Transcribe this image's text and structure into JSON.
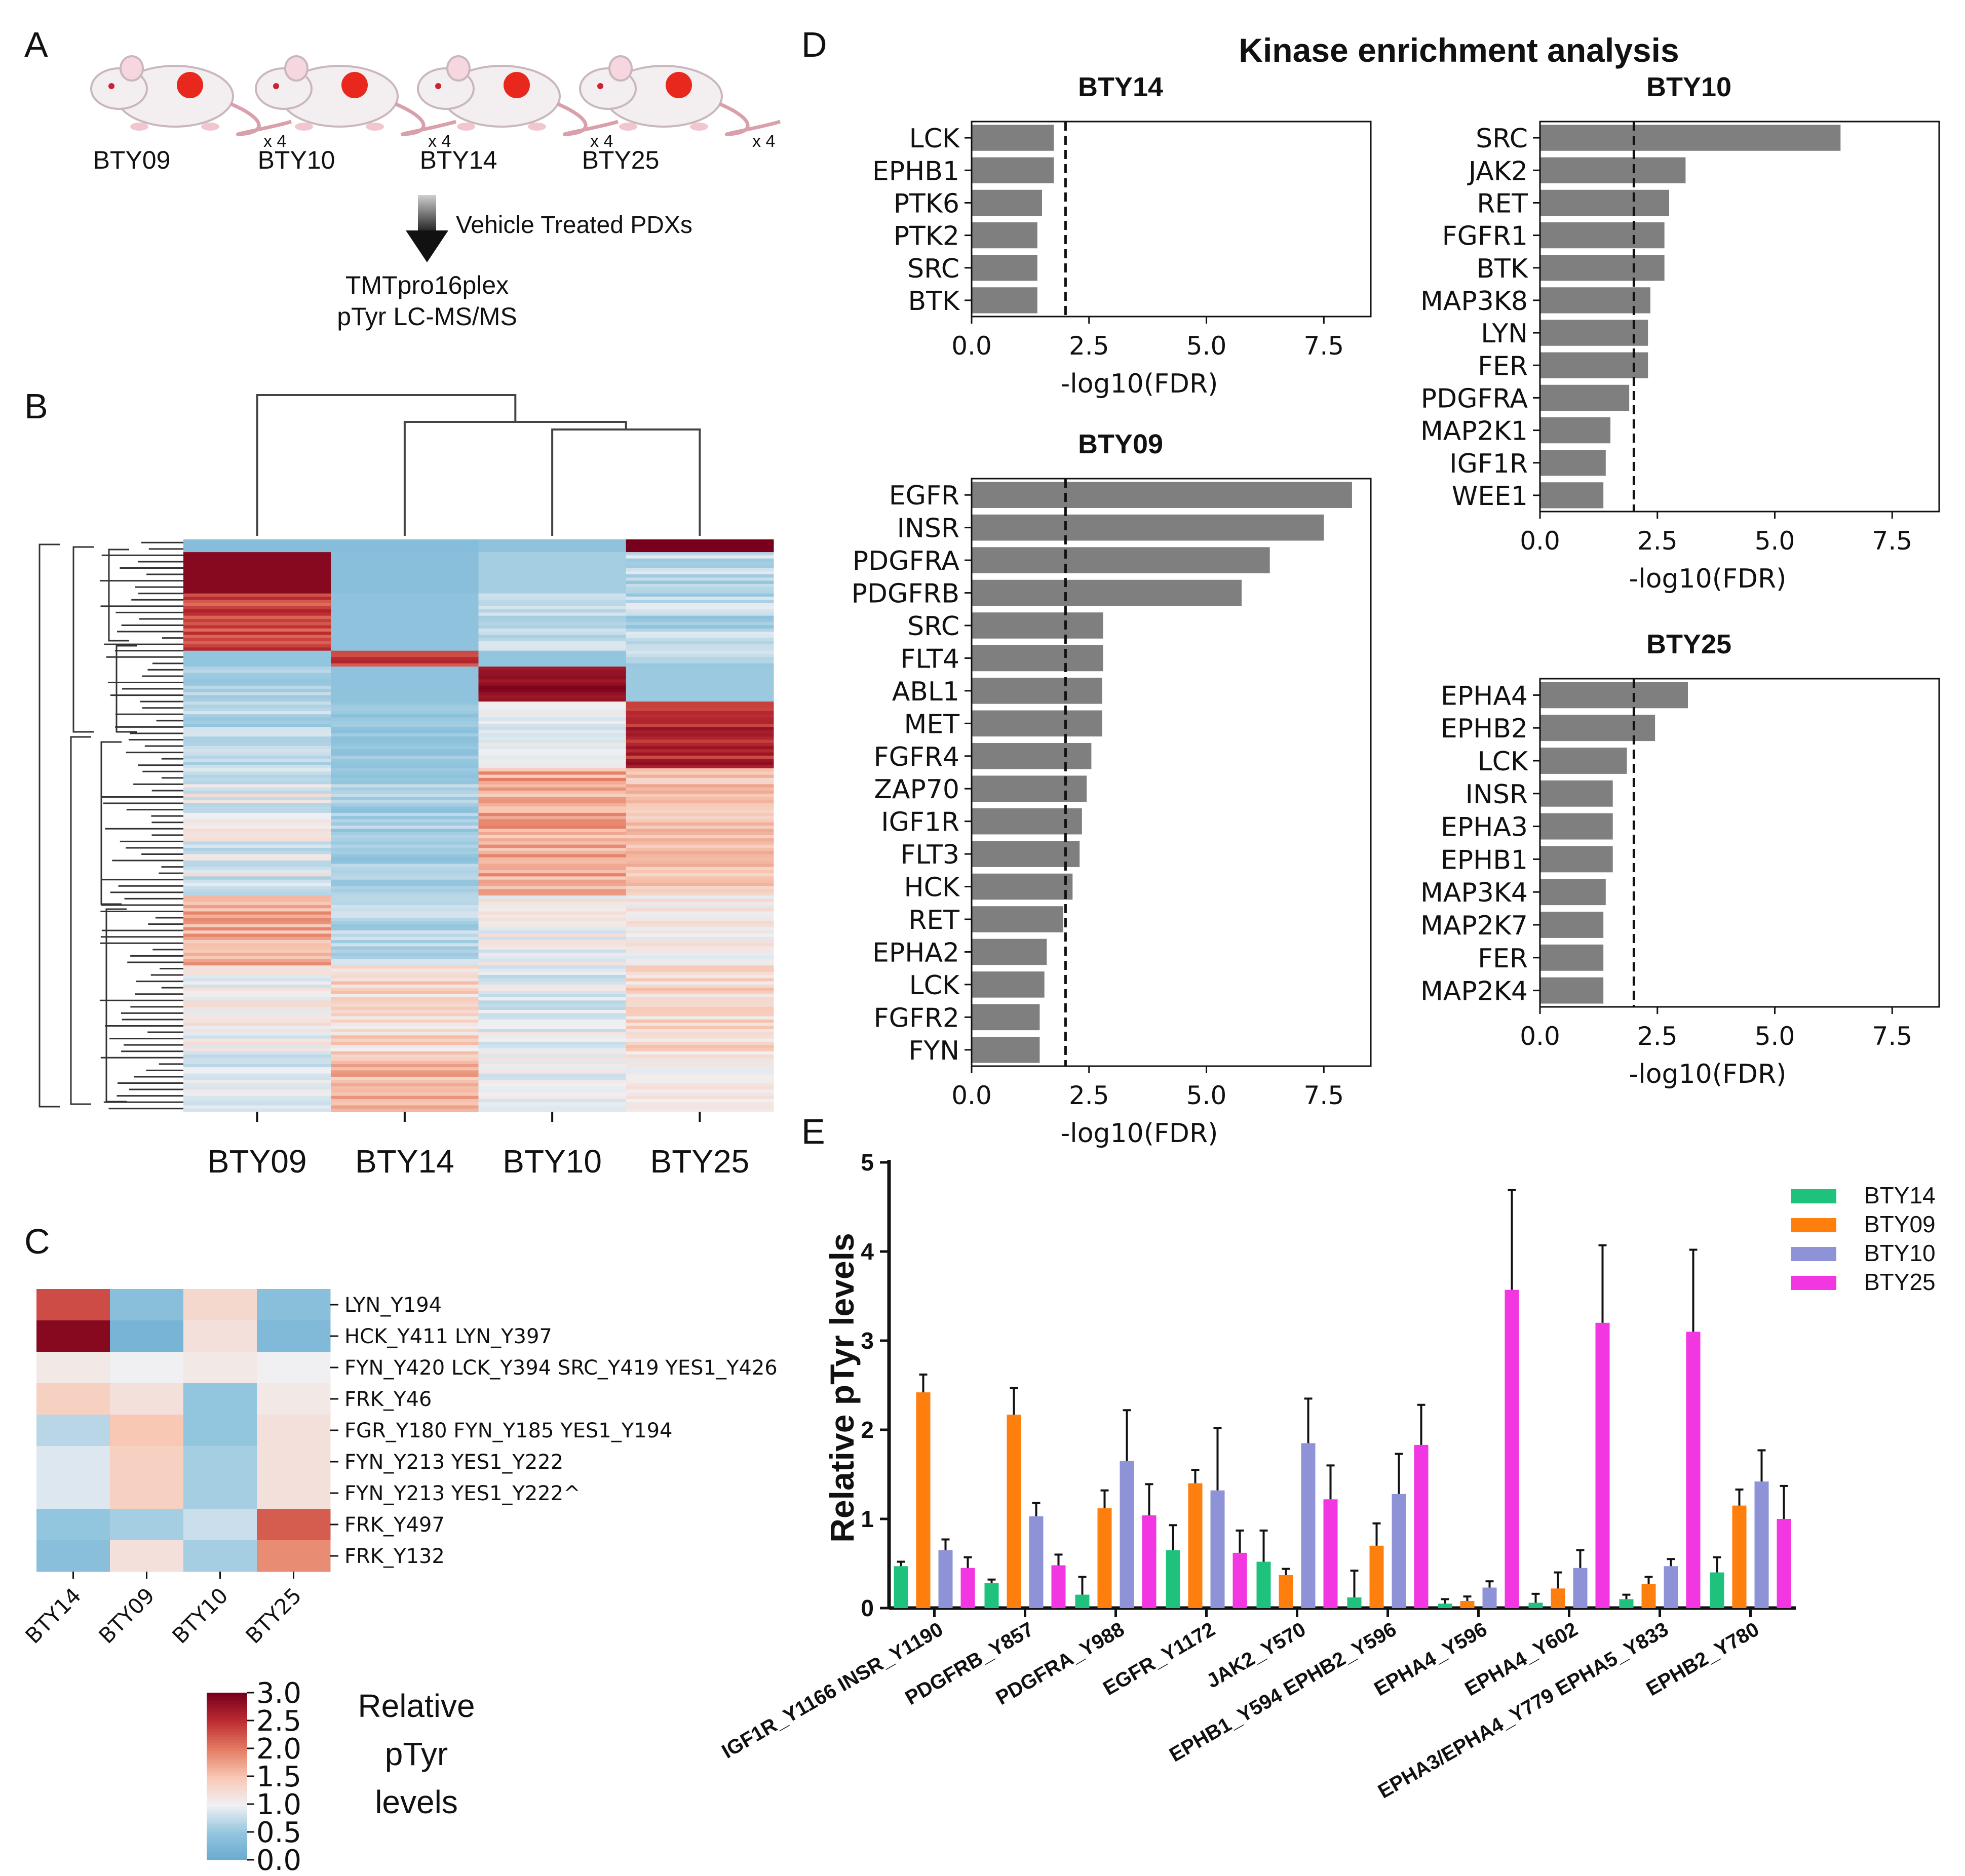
{
  "panel_letters": {
    "a": "A",
    "b": "B",
    "c": "C",
    "d": "D",
    "e": "E"
  },
  "panel_a": {
    "mice": [
      {
        "label": "BTY09",
        "rep": "x 4"
      },
      {
        "label": "BTY10",
        "rep": "x 4"
      },
      {
        "label": "BTY14",
        "rep": "x 4"
      },
      {
        "label": "BTY25",
        "rep": "x 4"
      }
    ],
    "arrow_label": "Vehicle Treated PDXs",
    "method_line1": "TMTpro16plex",
    "method_line2": "pTyr LC-MS/MS"
  },
  "panel_b": {
    "columns": [
      "BTY09",
      "BTY14",
      "BTY10",
      "BTY25"
    ]
  },
  "chart_data": [
    {
      "id": "heatmap_c",
      "type": "heatmap",
      "columns": [
        "BTY14",
        "BTY09",
        "BTY10",
        "BTY25"
      ],
      "rows": [
        "LYN_Y194",
        "HCK_Y411 LYN_Y397",
        "FYN_Y420 LCK_Y394 SRC_Y419 YES1_Y426",
        "FRK_Y46",
        "FGR_Y180 FYN_Y185 YES1_Y194",
        "FYN_Y213 YES1_Y222",
        "FYN_Y213 YES1_Y222^",
        "FRK_Y497",
        "FRK_Y132"
      ],
      "values": [
        [
          2.3,
          0.4,
          1.3,
          0.4
        ],
        [
          2.9,
          0.2,
          1.2,
          0.3
        ],
        [
          1.1,
          1.0,
          1.1,
          1.0
        ],
        [
          1.4,
          1.2,
          0.5,
          1.1
        ],
        [
          0.7,
          1.5,
          0.5,
          1.2
        ],
        [
          0.9,
          1.4,
          0.6,
          1.2
        ],
        [
          0.9,
          1.4,
          0.6,
          1.2
        ],
        [
          0.5,
          0.6,
          0.8,
          2.2
        ],
        [
          0.4,
          1.2,
          0.6,
          1.9
        ]
      ],
      "colorbar": {
        "min": 0.0,
        "max": 3.0,
        "ticks": [
          "3.0",
          "2.5",
          "2.0",
          "1.5",
          "1.0",
          "0.5",
          "0.0"
        ],
        "label": [
          "Relative",
          "pTyr",
          "levels"
        ]
      }
    },
    {
      "id": "kea_title",
      "type": "bar",
      "title": "Kinase enrichment analysis"
    },
    {
      "id": "kea_bty14",
      "type": "bar",
      "orientation": "horizontal",
      "title": "BTY14",
      "xlabel": "-log10(FDR)",
      "xlim": [
        0,
        8.5
      ],
      "xticks": [
        "0.0",
        "2.5",
        "5.0",
        "7.5"
      ],
      "threshold": 2.0,
      "categories": [
        "LCK",
        "EPHB1",
        "PTK6",
        "PTK2",
        "SRC",
        "BTK"
      ],
      "values": [
        1.75,
        1.75,
        1.5,
        1.4,
        1.4,
        1.4
      ]
    },
    {
      "id": "kea_bty10",
      "type": "bar",
      "orientation": "horizontal",
      "title": "BTY10",
      "xlabel": "-log10(FDR)",
      "xlim": [
        0,
        8.5
      ],
      "xticks": [
        "0.0",
        "2.5",
        "5.0",
        "7.5"
      ],
      "threshold": 2.0,
      "categories": [
        "SRC",
        "JAK2",
        "RET",
        "FGFR1",
        "BTK",
        "MAP3K8",
        "LYN",
        "FER",
        "PDGFRA",
        "MAP2K1",
        "IGF1R",
        "WEE1"
      ],
      "values": [
        6.4,
        3.1,
        2.75,
        2.65,
        2.65,
        2.35,
        2.3,
        2.3,
        1.9,
        1.5,
        1.4,
        1.35
      ]
    },
    {
      "id": "kea_bty09",
      "type": "bar",
      "orientation": "horizontal",
      "title": "BTY09",
      "xlabel": "-log10(FDR)",
      "xlim": [
        0,
        8.5
      ],
      "xticks": [
        "0.0",
        "2.5",
        "5.0",
        "7.5"
      ],
      "threshold": 2.0,
      "categories": [
        "EGFR",
        "INSR",
        "PDGFRA",
        "PDGFRB",
        "SRC",
        "FLT4",
        "ABL1",
        "MET",
        "FGFR4",
        "ZAP70",
        "IGF1R",
        "FLT3",
        "HCK",
        "RET",
        "EPHA2",
        "LCK",
        "FGFR2",
        "FYN"
      ],
      "values": [
        8.1,
        7.5,
        6.35,
        5.75,
        2.8,
        2.8,
        2.78,
        2.78,
        2.55,
        2.45,
        2.35,
        2.3,
        2.15,
        1.95,
        1.6,
        1.55,
        1.45,
        1.45
      ]
    },
    {
      "id": "kea_bty25",
      "type": "bar",
      "orientation": "horizontal",
      "title": "BTY25",
      "xlabel": "-log10(FDR)",
      "xlim": [
        0,
        8.5
      ],
      "xticks": [
        "0.0",
        "2.5",
        "5.0",
        "7.5"
      ],
      "threshold": 2.0,
      "categories": [
        "EPHA4",
        "EPHB2",
        "LCK",
        "INSR",
        "EPHA3",
        "EPHB1",
        "MAP3K4",
        "MAP2K7",
        "FER",
        "MAP2K4"
      ],
      "values": [
        3.15,
        2.45,
        1.85,
        1.55,
        1.55,
        1.55,
        1.4,
        1.35,
        1.35,
        1.35
      ]
    },
    {
      "id": "bars_e",
      "type": "bar",
      "ylabel": "Relative pTyr levels",
      "ylim": [
        0,
        5
      ],
      "yticks": [
        "0",
        "1",
        "2",
        "3",
        "4",
        "5"
      ],
      "categories": [
        "IGF1R_Y1166 INSR_Y1190",
        "PDGFRB_Y857",
        "PDGFRA_Y988",
        "EGFR_Y1172",
        "JAK2_Y570",
        "EPHB1_Y594 EPHB2_Y596",
        "EPHA4_Y596",
        "EPHA4_Y602",
        "EPHA3/EPHA4_Y779 EPHA5_Y833",
        "EPHB2_Y780"
      ],
      "series": [
        {
          "name": "BTY14",
          "color": "#1ec27d",
          "values": [
            0.47,
            0.28,
            0.15,
            0.65,
            0.52,
            0.12,
            0.05,
            0.06,
            0.1,
            0.4
          ],
          "errors": [
            0.05,
            0.04,
            0.2,
            0.28,
            0.35,
            0.3,
            0.05,
            0.1,
            0.05,
            0.17
          ]
        },
        {
          "name": "BTY09",
          "color": "#ff7f0e",
          "values": [
            2.42,
            2.17,
            1.12,
            1.4,
            0.37,
            0.7,
            0.08,
            0.22,
            0.27,
            1.15
          ],
          "errors": [
            0.2,
            0.3,
            0.2,
            0.15,
            0.07,
            0.25,
            0.05,
            0.18,
            0.08,
            0.18
          ]
        },
        {
          "name": "BTY10",
          "color": "#8d93d6",
          "values": [
            0.65,
            1.03,
            1.65,
            1.32,
            1.85,
            1.28,
            0.23,
            0.45,
            0.47,
            1.42
          ],
          "errors": [
            0.12,
            0.15,
            0.57,
            0.7,
            0.5,
            0.45,
            0.07,
            0.2,
            0.08,
            0.35
          ]
        },
        {
          "name": "BTY25",
          "color": "#f236e2",
          "values": [
            0.45,
            0.48,
            1.04,
            0.62,
            1.22,
            1.83,
            3.57,
            3.2,
            3.1,
            1.0
          ],
          "errors": [
            0.12,
            0.12,
            0.35,
            0.25,
            0.38,
            0.45,
            1.12,
            0.87,
            0.92,
            0.37
          ]
        }
      ]
    }
  ]
}
